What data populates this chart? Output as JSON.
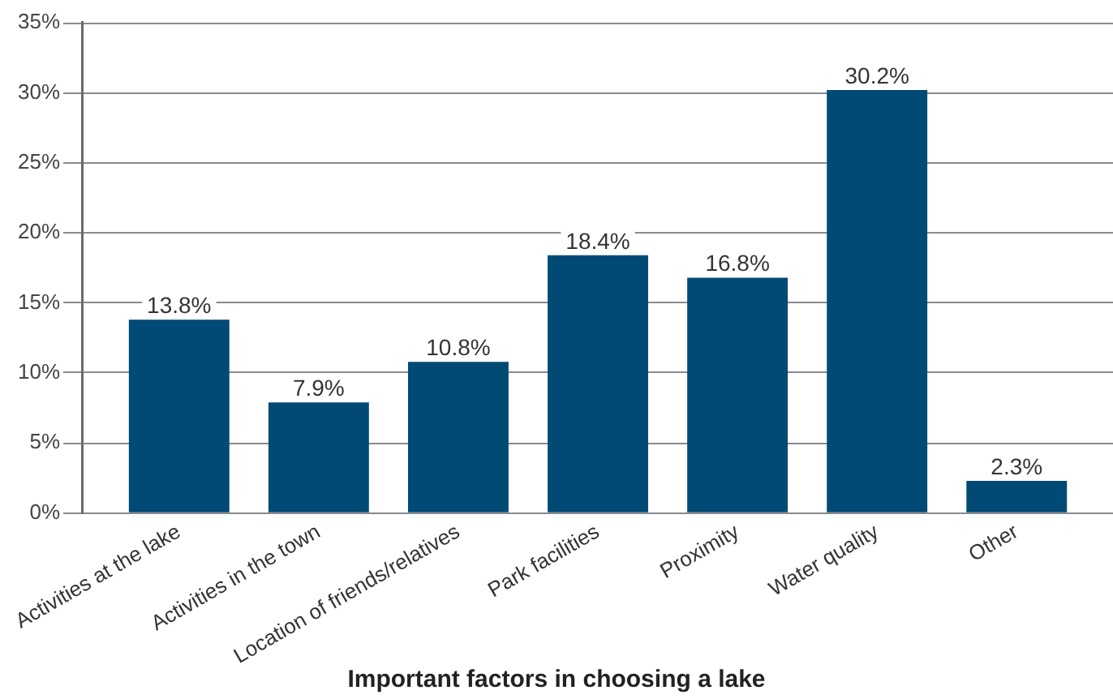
{
  "chart_data": {
    "type": "bar",
    "xlabel": "Important factors in choosing a lake",
    "categories": [
      "Activities at the lake",
      "Activities in the town",
      "Location of friends/relatives",
      "Park facilities",
      "Proximity",
      "Water quality",
      "Other"
    ],
    "values": [
      13.8,
      7.9,
      10.8,
      18.4,
      16.8,
      30.2,
      2.3
    ],
    "value_labels": [
      "13.8%",
      "7.9%",
      "10.8%",
      "18.4%",
      "16.8%",
      "30.2%",
      "2.3%"
    ],
    "color": "#004a75",
    "ylim": [
      0,
      35
    ],
    "yticks": [
      {
        "value": 0,
        "label": "0%"
      },
      {
        "value": 5,
        "label": "5%"
      },
      {
        "value": 10,
        "label": "10%"
      },
      {
        "value": 15,
        "label": "15%"
      },
      {
        "value": 20,
        "label": "20%"
      },
      {
        "value": 25,
        "label": "25%"
      },
      {
        "value": 30,
        "label": "30%"
      },
      {
        "value": 35,
        "label": "35%"
      }
    ],
    "grid": "y"
  }
}
